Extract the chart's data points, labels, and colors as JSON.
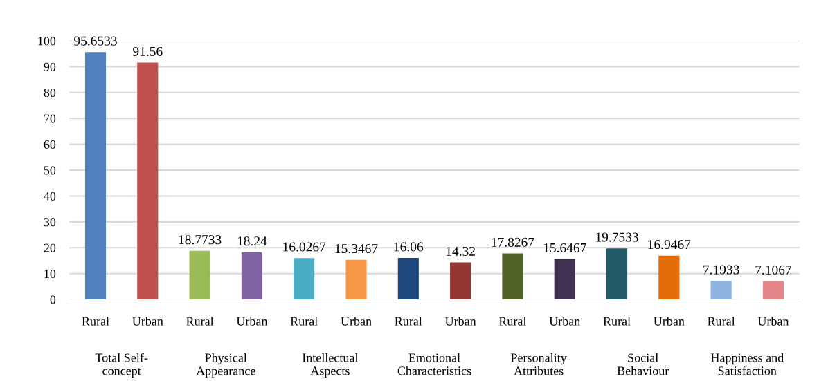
{
  "chart_data": {
    "type": "bar",
    "categories": [
      "Rural",
      "Urban",
      "Rural",
      "Urban",
      "Rural",
      "Urban",
      "Rural",
      "Urban",
      "Rural",
      "Urban",
      "Rural",
      "Urban",
      "Rural",
      "Urban"
    ],
    "values": [
      95.6533,
      91.56,
      18.7733,
      18.24,
      16.0267,
      15.3467,
      16.06,
      14.32,
      17.8267,
      15.6467,
      19.7533,
      16.9467,
      7.1933,
      7.1067
    ],
    "colors": [
      "#4f81bd",
      "#c0504d",
      "#9bbb59",
      "#8064a2",
      "#4bacc6",
      "#f79646",
      "#1f497d",
      "#943634",
      "#4f6228",
      "#3f3151",
      "#215967",
      "#e46c0a",
      "#8db3e2",
      "#e6868a"
    ],
    "annotations": [
      "Total Self-\nconcept",
      "Physical\nAppearance",
      "Intellectual\nAspects",
      "Emotional\nCharacteristics",
      "Personality\nAttributes",
      "Social\nBehaviour",
      "Happiness and\nSatisfaction"
    ],
    "ylim": [
      0,
      100
    ],
    "yticks": [
      0,
      10,
      20,
      30,
      40,
      50,
      60,
      70,
      80,
      90,
      100
    ],
    "grid": "y",
    "data_labels": true
  }
}
